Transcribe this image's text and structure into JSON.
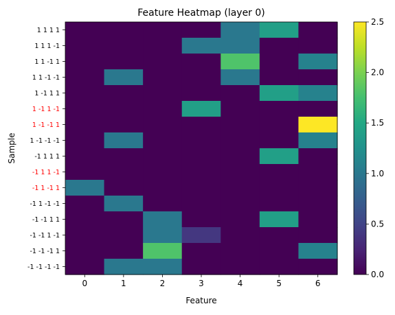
{
  "chart_data": {
    "type": "heatmap",
    "title": "Feature Heatmap (layer 0)",
    "xlabel": "Feature",
    "ylabel": "Sample",
    "x_categories": [
      "0",
      "1",
      "2",
      "3",
      "4",
      "5",
      "6"
    ],
    "y_categories": [
      "1 1 1 1",
      "1 1 1 -1",
      "1 1 -1 1",
      "1 1 -1 -1",
      "1 -1 1 1",
      "1 -1 1 -1",
      "1 -1 -1 1",
      "1 -1 -1 -1",
      "-1 1 1 1",
      "-1 1 1 -1",
      "-1 1 -1 1",
      "-1 1 -1 -1",
      "-1 -1 1 1",
      "-1 -1 1 -1",
      "-1 -1 -1 1",
      "-1 -1 -1 -1"
    ],
    "highlighted_rows": [
      5,
      6,
      9,
      10
    ],
    "highlight_color": "#ff0000",
    "values": [
      [
        0,
        0,
        0,
        0,
        1,
        1.4,
        0
      ],
      [
        0,
        0,
        0,
        1,
        1,
        0,
        0
      ],
      [
        0,
        0,
        0,
        0,
        1.8,
        0,
        1.1
      ],
      [
        0,
        1,
        0,
        0,
        1,
        0,
        0
      ],
      [
        0,
        0,
        0,
        0,
        0,
        1.4,
        1.1
      ],
      [
        0,
        0,
        0,
        1.4,
        0,
        0,
        0
      ],
      [
        0,
        0,
        0,
        0,
        0,
        0,
        2.5
      ],
      [
        0,
        1,
        0,
        0,
        0,
        0,
        1.1
      ],
      [
        0,
        0,
        0,
        0,
        0,
        1.4,
        0
      ],
      [
        0,
        0,
        0,
        0,
        0,
        0,
        0
      ],
      [
        1,
        0,
        0,
        0,
        0,
        0,
        0
      ],
      [
        0,
        1,
        0,
        0,
        0,
        0,
        0
      ],
      [
        0,
        0,
        1,
        0,
        0,
        1.4,
        0
      ],
      [
        0,
        0,
        1,
        0.4,
        0,
        0,
        0
      ],
      [
        0,
        0,
        1.8,
        0,
        0,
        0,
        1.1
      ],
      [
        0,
        1,
        1,
        0,
        0,
        0,
        0
      ]
    ],
    "colormap": "viridis",
    "vmin": 0,
    "vmax": 2.5,
    "colorbar_ticks": [
      "0.0",
      "0.5",
      "1.0",
      "1.5",
      "2.0",
      "2.5"
    ],
    "grid": false
  }
}
